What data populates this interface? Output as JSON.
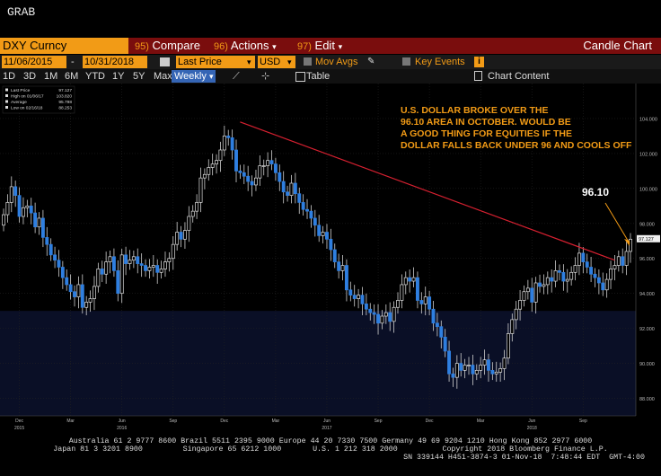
{
  "app": {
    "title": "GRAB"
  },
  "toolbar": {
    "ticker": "DXY Curncy",
    "compare_num": "95)",
    "compare_label": "Compare",
    "actions_num": "96)",
    "actions_label": "Actions",
    "edit_num": "97)",
    "edit_label": "Edit",
    "chart_title": "Candle Chart"
  },
  "settings": {
    "start_date": "11/06/2015",
    "end_date": "10/31/2018",
    "field": "Last Price",
    "currency": "USD",
    "mov_avgs": "Mov Avgs",
    "key_events": "Key Events"
  },
  "ranges": {
    "items": [
      "1D",
      "3D",
      "1M",
      "6M",
      "YTD",
      "1Y",
      "5Y",
      "Max"
    ],
    "period": "Weekly",
    "table": "Table",
    "chart_content": "Chart Content"
  },
  "chart_data": {
    "type": "candlestick",
    "legend": [
      {
        "label": "Last Price",
        "value": "97.127"
      },
      {
        "label": "High on 01/06/17",
        "value": "103.820"
      },
      {
        "label": "Average",
        "value": "95.798"
      },
      {
        "label": "Low on 02/16/18",
        "value": "88.253"
      }
    ],
    "ylim": [
      87,
      106
    ],
    "y_ticks": [
      "104.000",
      "102.000",
      "100.000",
      "98.000",
      "96.000",
      "94.000",
      "92.000",
      "90.000",
      "88.000"
    ],
    "y_tick_values": [
      104,
      102,
      100,
      98,
      96,
      94,
      92,
      90,
      88
    ],
    "last_price_label": "97.127",
    "x_tick_labels": [
      "Dec",
      "Mar",
      "Jun",
      "Sep",
      "Dec",
      "Mar",
      "Jun",
      "Sep",
      "Dec",
      "Mar",
      "Jun",
      "Sep"
    ],
    "x_tick_weeks": [
      4,
      17,
      30,
      43,
      56,
      69,
      82,
      95,
      108,
      121,
      134,
      147
    ],
    "year_labels": [
      {
        "label": "2015",
        "week": 4
      },
      {
        "label": "2016",
        "week": 30
      },
      {
        "label": "2017",
        "week": 82
      },
      {
        "label": "2018",
        "week": 134
      }
    ],
    "annotation": "U.S. DOLLAR BROKE OVER THE 96.10 AREA IN OCTOBER. WOULD BE A GOOD THING FOR EQUITIES IF THE DOLLAR FALLS BACK UNDER 96 AND COOLS OFF",
    "level_label": "96.10",
    "trendline": {
      "start_week": 60,
      "start_value": 103.8,
      "end_week": 155,
      "end_value": 95.9
    },
    "weekly_close": [
      98.5,
      99.2,
      100.1,
      99.6,
      98.4,
      98.9,
      99.0,
      98.6,
      97.8,
      98.3,
      97.2,
      96.8,
      96.2,
      95.9,
      95.5,
      94.9,
      94.5,
      94.1,
      93.8,
      94.5,
      93.2,
      93.5,
      93.7,
      94.4,
      95.4,
      95.1,
      95.8,
      96.1,
      95.3,
      94.0,
      96.2,
      95.7,
      95.9,
      96.1,
      95.7,
      95.6,
      95.3,
      95.5,
      95.6,
      95.2,
      95.4,
      95.8,
      96.0,
      96.8,
      97.5,
      97.1,
      97.6,
      98.4,
      98.7,
      99.2,
      100.6,
      100.8,
      101.2,
      101.4,
      101.6,
      102.2,
      103.0,
      102.9,
      102.2,
      101.0,
      100.9,
      100.7,
      100.4,
      100.2,
      100.6,
      101.3,
      101.3,
      101.6,
      101.4,
      100.9,
      100.4,
      99.8,
      99.6,
      100.3,
      99.7,
      99.2,
      98.8,
      98.7,
      98.3,
      97.9,
      97.3,
      97.5,
      97.1,
      96.5,
      95.8,
      95.3,
      95.6,
      94.2,
      93.9,
      93.7,
      93.9,
      93.4,
      93.1,
      92.9,
      92.8,
      92.3,
      92.7,
      92.9,
      92.4,
      93.2,
      93.6,
      94.5,
      94.9,
      94.7,
      94.9,
      93.6,
      93.4,
      93.8,
      93.1,
      92.3,
      92.1,
      91.5,
      90.7,
      89.4,
      89.2,
      90.0,
      89.6,
      89.9,
      89.9,
      89.4,
      89.6,
      89.9,
      90.2,
      89.6,
      89.4,
      89.5,
      89.7,
      90.3,
      91.7,
      92.5,
      93.1,
      93.6,
      94.1,
      94.3,
      93.5,
      94.6,
      94.4,
      94.5,
      94.9,
      94.7,
      95.3,
      95.2,
      94.7,
      94.8,
      95.2,
      95.6,
      96.3,
      95.8,
      95.5,
      95.1,
      94.9,
      94.6,
      94.2,
      94.8,
      95.4,
      95.6,
      96.1,
      95.6,
      96.4,
      97.1
    ],
    "weekly_open": [
      97.9,
      98.5,
      99.2,
      100.1,
      99.6,
      98.4,
      98.9,
      99.0,
      98.6,
      97.8,
      98.3,
      97.2,
      96.8,
      96.2,
      95.9,
      95.5,
      94.9,
      94.5,
      94.1,
      93.8,
      94.5,
      93.2,
      93.5,
      93.7,
      94.4,
      95.4,
      95.1,
      95.8,
      96.1,
      95.3,
      94.0,
      96.2,
      95.7,
      95.9,
      96.1,
      95.7,
      95.6,
      95.3,
      95.5,
      95.6,
      95.2,
      95.4,
      95.8,
      96.0,
      96.8,
      97.5,
      97.1,
      97.6,
      98.4,
      98.7,
      99.2,
      100.6,
      100.8,
      101.2,
      101.4,
      101.6,
      102.2,
      103.0,
      102.9,
      102.2,
      101.0,
      100.9,
      100.7,
      100.4,
      100.2,
      100.6,
      101.3,
      101.3,
      101.6,
      101.4,
      100.9,
      100.4,
      99.8,
      99.6,
      100.3,
      99.7,
      99.2,
      98.8,
      98.7,
      98.3,
      97.9,
      97.3,
      97.5,
      97.1,
      96.5,
      95.8,
      95.3,
      95.6,
      94.2,
      93.9,
      93.7,
      93.9,
      93.4,
      93.1,
      92.9,
      92.8,
      92.3,
      92.7,
      92.9,
      92.4,
      93.2,
      93.6,
      94.5,
      94.9,
      94.7,
      94.9,
      93.6,
      93.4,
      93.8,
      93.1,
      92.3,
      92.1,
      91.5,
      90.7,
      89.4,
      89.2,
      90.0,
      89.6,
      89.9,
      89.9,
      89.4,
      89.6,
      89.9,
      90.2,
      89.6,
      89.4,
      89.5,
      89.7,
      90.3,
      91.7,
      92.5,
      93.1,
      93.6,
      94.1,
      94.3,
      93.5,
      94.6,
      94.4,
      94.5,
      94.9,
      94.7,
      95.3,
      95.2,
      94.7,
      94.8,
      95.2,
      95.6,
      96.3,
      95.8,
      95.5,
      95.1,
      94.9,
      94.6,
      94.2,
      94.8,
      95.4,
      95.6,
      96.1,
      95.6,
      96.4
    ]
  },
  "footer": {
    "line1": "Australia 61 2 9777 8600 Brazil 5511 2395 9000 Europe 44 20 7330 7500 Germany 49 69 9204 1210 Hong Kong 852 2977 6000",
    "line2": "Japan 81 3 3201 8900         Singapore 65 6212 1000       U.S. 1 212 318 2000          Copyright 2018 Bloomberg Finance L.P.",
    "line3": "SN 339144 H451-3874-3 01-Nov-18  7:48:44 EDT  GMT-4:00"
  }
}
